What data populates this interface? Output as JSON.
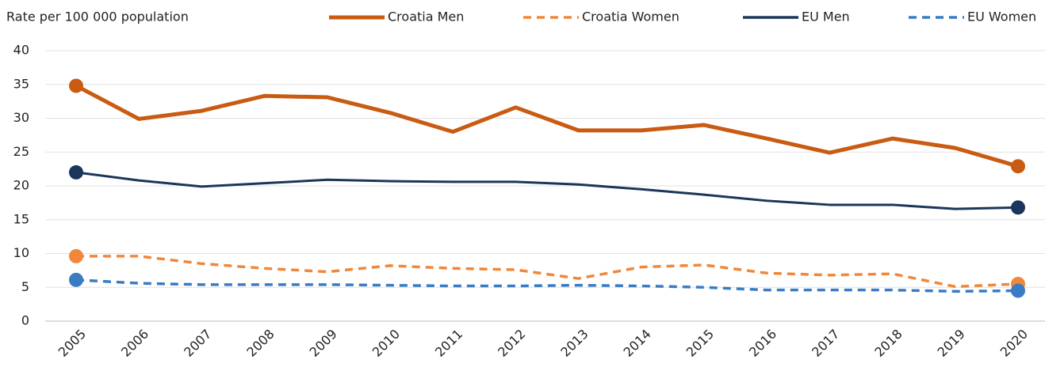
{
  "chart_data": {
    "type": "line",
    "y_label": "Rate per 100 000 population",
    "categories": [
      "2005",
      "2006",
      "2007",
      "2008",
      "2009",
      "2010",
      "2011",
      "2012",
      "2013",
      "2014",
      "2015",
      "2016",
      "2017",
      "2018",
      "2019",
      "2020"
    ],
    "series": [
      {
        "name": "Croatia Men",
        "color": "#c95b12",
        "dashed": false,
        "values": [
          34.8,
          29.9,
          31.1,
          33.3,
          33.1,
          30.8,
          28.0,
          31.6,
          28.2,
          28.2,
          29.0,
          27.0,
          24.9,
          27.0,
          25.6,
          22.9
        ]
      },
      {
        "name": "Croatia Women",
        "color": "#f0873a",
        "dashed": true,
        "values": [
          9.6,
          9.6,
          8.5,
          7.8,
          7.3,
          8.2,
          7.8,
          7.6,
          6.3,
          8.0,
          8.3,
          7.1,
          6.8,
          7.0,
          5.1,
          5.5
        ]
      },
      {
        "name": "EU Men",
        "color": "#1b365a",
        "dashed": false,
        "values": [
          22.0,
          20.8,
          19.9,
          20.4,
          20.9,
          20.7,
          20.6,
          20.6,
          20.2,
          19.5,
          18.7,
          17.8,
          17.2,
          17.2,
          16.6,
          16.8
        ]
      },
      {
        "name": "EU Women",
        "color": "#3a7cc4",
        "dashed": true,
        "values": [
          6.1,
          5.6,
          5.4,
          5.4,
          5.4,
          5.3,
          5.2,
          5.2,
          5.3,
          5.2,
          5.0,
          4.6,
          4.6,
          4.6,
          4.4,
          4.5
        ]
      }
    ],
    "markers": "endpoints",
    "ylim": [
      0,
      40
    ],
    "yticks": [
      0,
      5,
      10,
      15,
      20,
      25,
      30,
      35,
      40
    ],
    "grid": true,
    "legend": "top"
  }
}
